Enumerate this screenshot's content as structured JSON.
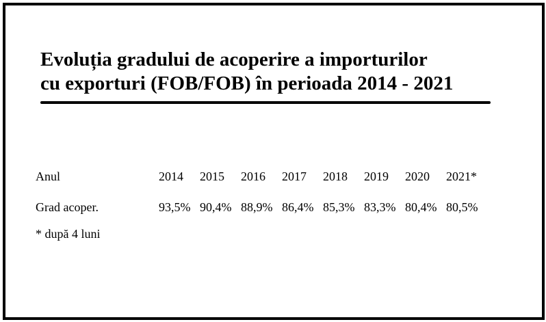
{
  "title": {
    "line1": "Evoluția gradului de acoperire a importurilor",
    "line2": "cu exporturi (FOB/FOB) în perioada 2014 - 2021"
  },
  "table": {
    "year_label": "Anul",
    "years": [
      "2014",
      "2015",
      "2016",
      "2017",
      "2018",
      "2019",
      "2020",
      "2021*"
    ],
    "coverage_label": "Grad acoper.",
    "coverage": [
      "93,5%",
      "90,4%",
      "88,9%",
      "86,4%",
      "85,3%",
      "83,3%",
      "80,4%",
      "80,5%"
    ]
  },
  "footnote": "* după 4 luni"
}
